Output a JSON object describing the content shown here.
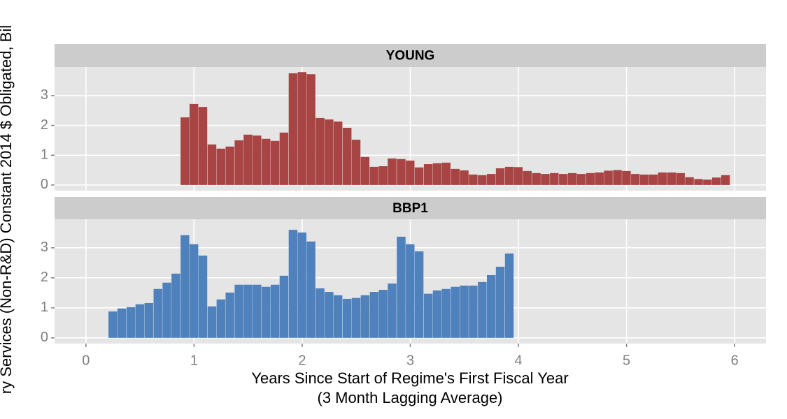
{
  "chart_data": [
    {
      "type": "bar",
      "title": "YOUNG",
      "color": "#a84443",
      "x": [
        0.917,
        1,
        1.083,
        1.167,
        1.25,
        1.333,
        1.417,
        1.5,
        1.583,
        1.667,
        1.75,
        1.833,
        1.917,
        2,
        2.083,
        2.167,
        2.25,
        2.333,
        2.417,
        2.5,
        2.583,
        2.667,
        2.75,
        2.833,
        2.917,
        3,
        3.083,
        3.167,
        3.25,
        3.333,
        3.417,
        3.5,
        3.583,
        3.667,
        3.75,
        3.833,
        3.917,
        4,
        4.083,
        4.167,
        4.25,
        4.333,
        4.417,
        4.5,
        4.583,
        4.667,
        4.75,
        4.833,
        4.917,
        5,
        5.083,
        5.167,
        5.25,
        5.333,
        5.417,
        5.5,
        5.583,
        5.667,
        5.75,
        5.833,
        5.917
      ],
      "values": [
        2.27,
        2.72,
        2.62,
        1.36,
        1.22,
        1.29,
        1.5,
        1.69,
        1.66,
        1.55,
        1.48,
        1.76,
        3.75,
        3.79,
        3.72,
        2.25,
        2.2,
        2.13,
        1.92,
        1.52,
        0.94,
        0.61,
        0.63,
        0.89,
        0.87,
        0.82,
        0.59,
        0.7,
        0.73,
        0.75,
        0.54,
        0.49,
        0.35,
        0.33,
        0.37,
        0.56,
        0.61,
        0.6,
        0.47,
        0.4,
        0.37,
        0.4,
        0.37,
        0.4,
        0.37,
        0.4,
        0.42,
        0.48,
        0.5,
        0.47,
        0.37,
        0.35,
        0.35,
        0.42,
        0.42,
        0.4,
        0.26,
        0.2,
        0.18,
        0.25,
        0.33
      ],
      "xlim": [
        -0.29,
        6.29
      ],
      "xticks": [
        0,
        1,
        2,
        3,
        4,
        5,
        6
      ],
      "ylim": [
        -0.19,
        3.96
      ],
      "yticks": [
        0,
        1,
        2,
        3
      ],
      "grid": true
    },
    {
      "type": "bar",
      "title": "BBP1",
      "color": "#4f81bd",
      "x": [
        0.25,
        0.333,
        0.417,
        0.5,
        0.583,
        0.667,
        0.75,
        0.833,
        0.917,
        1,
        1.083,
        1.167,
        1.25,
        1.333,
        1.417,
        1.5,
        1.583,
        1.667,
        1.75,
        1.833,
        1.917,
        2,
        2.083,
        2.167,
        2.25,
        2.333,
        2.417,
        2.5,
        2.583,
        2.667,
        2.75,
        2.833,
        2.917,
        3,
        3.083,
        3.167,
        3.25,
        3.333,
        3.417,
        3.5,
        3.583,
        3.667,
        3.75,
        3.833,
        3.917
      ],
      "values": [
        0.88,
        0.98,
        1.02,
        1.12,
        1.16,
        1.63,
        1.84,
        2.14,
        3.42,
        3.12,
        2.74,
        1.05,
        1.28,
        1.51,
        1.77,
        1.77,
        1.77,
        1.7,
        1.77,
        2.07,
        3.6,
        3.51,
        3.21,
        1.65,
        1.53,
        1.42,
        1.3,
        1.33,
        1.42,
        1.53,
        1.6,
        1.81,
        3.37,
        3.12,
        2.88,
        1.47,
        1.58,
        1.63,
        1.7,
        1.74,
        1.74,
        1.86,
        2.09,
        2.37,
        2.81
      ],
      "xlim": [
        -0.29,
        6.29
      ],
      "xticks": [
        0,
        1,
        2,
        3,
        4,
        5,
        6
      ],
      "ylim": [
        -0.19,
        3.95
      ],
      "yticks": [
        0,
        1,
        2,
        3
      ],
      "grid": true
    }
  ],
  "axis_labels": {
    "x": [
      "Years Since Start of Regime's First Fiscal Year",
      "(3 Month Lagging Average)"
    ],
    "y": "ry Services (Non-R&D) Constant 2014 $ Obligated, Bil"
  }
}
